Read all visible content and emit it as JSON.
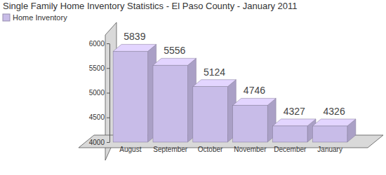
{
  "chart_data": {
    "type": "bar",
    "title": "Single Family Home Inventory Statistics - El Paso County - January 2011",
    "categories": [
      "August",
      "September",
      "October",
      "November",
      "December",
      "January"
    ],
    "series": [
      {
        "name": "Home Inventory",
        "color": "#c8bce8",
        "values": [
          5839,
          5556,
          5124,
          4746,
          4327,
          4326
        ]
      }
    ],
    "ylim": [
      4000,
      6000
    ],
    "yticks": [
      4000,
      4500,
      5000,
      5500,
      6000
    ],
    "grid": false,
    "legend": "top-left",
    "data_labels": true
  }
}
